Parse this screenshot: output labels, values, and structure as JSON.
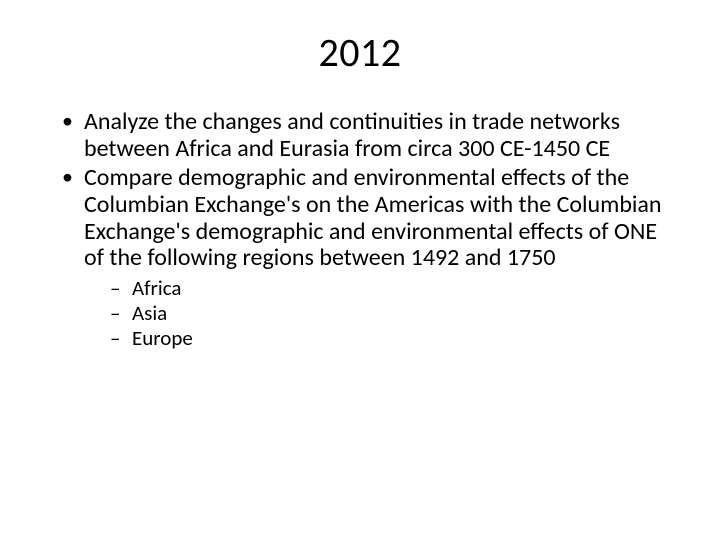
{
  "title": "2012",
  "bullets": [
    {
      "text": "Analyze the changes and continuities in trade networks between Africa and Eurasia from circa 300 CE-1450 CE"
    },
    {
      "text": "Compare demographic and environmental effects of the Columbian Exchange's on the Americas with the Columbian Exchange's demographic and environmental effects of ONE of the following regions between 1492 and 1750",
      "sub": [
        "Africa",
        "Asia",
        "Europe"
      ]
    }
  ],
  "colors": {
    "background": "#ffffff",
    "text": "#000000"
  },
  "typography": {
    "title_fontsize": 40,
    "bullet_fontsize": 24,
    "subbullet_fontsize": 21,
    "font_family": "Calibri"
  }
}
